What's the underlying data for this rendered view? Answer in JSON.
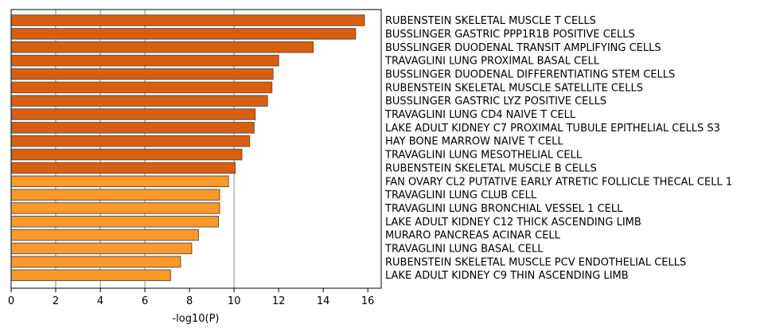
{
  "chart_data": {
    "type": "bar",
    "orientation": "horizontal",
    "xlabel": "-log10(P)",
    "ylabel": "",
    "title": "",
    "xlim": [
      0,
      16.6
    ],
    "xticks": [
      0,
      2,
      4,
      6,
      8,
      10,
      12,
      14,
      16
    ],
    "grid": "vertical lines at x = 2, 4, 6, 10",
    "colors": {
      "dark_bar": "#d95f0e",
      "light_bar": "#fe9929",
      "bar_edge": "#555555",
      "grid": "#b0b0b0"
    },
    "categories": [
      "RUBENSTEIN SKELETAL MUSCLE T CELLS",
      "BUSSLINGER GASTRIC PPP1R1B POSITIVE CELLS",
      "BUSSLINGER DUODENAL TRANSIT AMPLIFYING CELLS",
      "TRAVAGLINI LUNG PROXIMAL BASAL CELL",
      "BUSSLINGER DUODENAL DIFFERENTIATING STEM CELLS",
      "RUBENSTEIN SKELETAL MUSCLE SATELLITE CELLS",
      "BUSSLINGER GASTRIC LYZ POSITIVE CELLS",
      "TRAVAGLINI LUNG CD4 NAIVE T CELL",
      "LAKE ADULT KIDNEY C7 PROXIMAL TUBULE EPITHELIAL CELLS S3",
      "HAY BONE MARROW NAIVE T CELL",
      "TRAVAGLINI LUNG MESOTHELIAL CELL",
      "RUBENSTEIN SKELETAL MUSCLE B CELLS",
      "FAN OVARY CL2 PUTATIVE EARLY ATRETIC FOLLICLE THECAL CELL 1",
      "TRAVAGLINI LUNG CLUB CELL",
      "TRAVAGLINI LUNG BRONCHIAL VESSEL 1 CELL",
      "LAKE ADULT KIDNEY C12 THICK ASCENDING LIMB",
      "MURARO PANCREAS ACINAR CELL",
      "TRAVAGLINI LUNG BASAL CELL",
      "RUBENSTEIN SKELETAL MUSCLE PCV ENDOTHELIAL CELLS",
      "LAKE ADULT KIDNEY C9 THIN ASCENDING LIMB"
    ],
    "values": [
      15.85,
      15.45,
      13.55,
      12.0,
      11.75,
      11.7,
      11.5,
      10.95,
      10.9,
      10.7,
      10.35,
      10.05,
      9.75,
      9.35,
      9.35,
      9.3,
      8.4,
      8.1,
      7.6,
      7.15
    ],
    "color_group": [
      "dark",
      "dark",
      "dark",
      "dark",
      "dark",
      "dark",
      "dark",
      "dark",
      "dark",
      "dark",
      "dark",
      "dark",
      "light",
      "light",
      "light",
      "light",
      "light",
      "light",
      "light",
      "light"
    ]
  }
}
